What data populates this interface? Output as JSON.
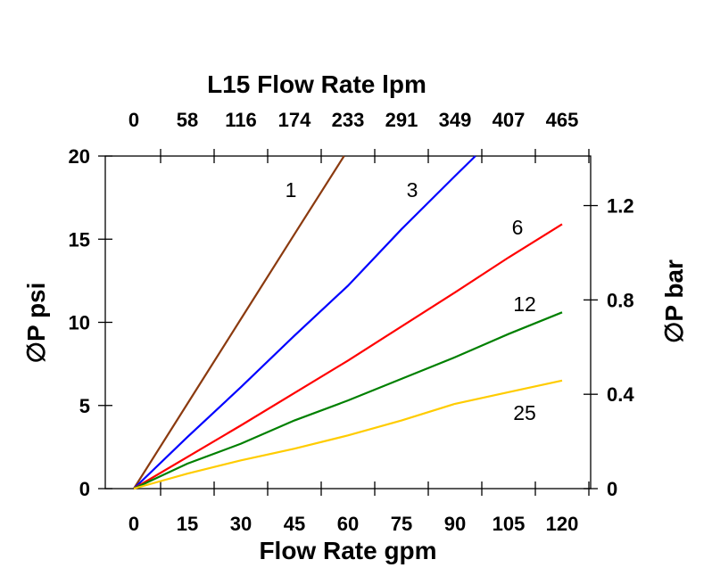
{
  "chart_data": {
    "type": "line",
    "top_title": "L15 Flow Rate lpm",
    "xlabel": "Flow Rate gpm",
    "ylabel": "∅P psi",
    "ylabel_right": "∅P bar",
    "xlim": [
      -8,
      128
    ],
    "ylim": [
      0,
      20
    ],
    "ylim_right": [
      0,
      1.41
    ],
    "x_ticks": [
      "0",
      "15",
      "30",
      "45",
      "60",
      "75",
      "90",
      "105",
      "120"
    ],
    "x_tick_values": [
      0,
      15,
      30,
      45,
      60,
      75,
      90,
      105,
      120
    ],
    "top_ticks": [
      "0",
      "58",
      "116",
      "174",
      "233",
      "291",
      "349",
      "407",
      "465"
    ],
    "y_ticks": [
      "0",
      "5",
      "10",
      "15",
      "20"
    ],
    "y_tick_values": [
      0,
      5,
      10,
      15,
      20
    ],
    "y_right_ticks": [
      "0",
      "0.4",
      "0.8",
      "1.2"
    ],
    "y_right_tick_values": [
      0,
      0.4,
      0.8,
      1.2
    ],
    "grid": false,
    "series": [
      {
        "name": "1",
        "color": "#8b3a0f",
        "x": [
          0,
          15,
          30,
          45,
          58.9
        ],
        "y": [
          0,
          5.1,
          10.2,
          15.3,
          20
        ]
      },
      {
        "name": "3",
        "color": "#0000ff",
        "x": [
          0,
          15,
          30,
          45,
          60,
          75,
          90,
          95.7
        ],
        "y": [
          0,
          3.1,
          6.1,
          9.2,
          12.2,
          15.6,
          18.8,
          20
        ]
      },
      {
        "name": "6",
        "color": "#ff0000",
        "x": [
          0,
          30,
          60,
          90,
          105,
          120
        ],
        "y": [
          0,
          3.8,
          7.7,
          11.8,
          13.9,
          15.9
        ]
      },
      {
        "name": "12",
        "color": "#008000",
        "x": [
          0,
          15,
          30,
          45,
          60,
          75,
          90,
          105,
          120
        ],
        "y": [
          0,
          1.5,
          2.7,
          4.1,
          5.3,
          6.6,
          7.9,
          9.3,
          10.6
        ]
      },
      {
        "name": "25",
        "color": "#ffcc00",
        "x": [
          0,
          15,
          30,
          45,
          60,
          75,
          90,
          105,
          120
        ],
        "y": [
          0,
          0.9,
          1.7,
          2.4,
          3.2,
          4.1,
          5.1,
          5.8,
          6.5
        ]
      }
    ]
  }
}
